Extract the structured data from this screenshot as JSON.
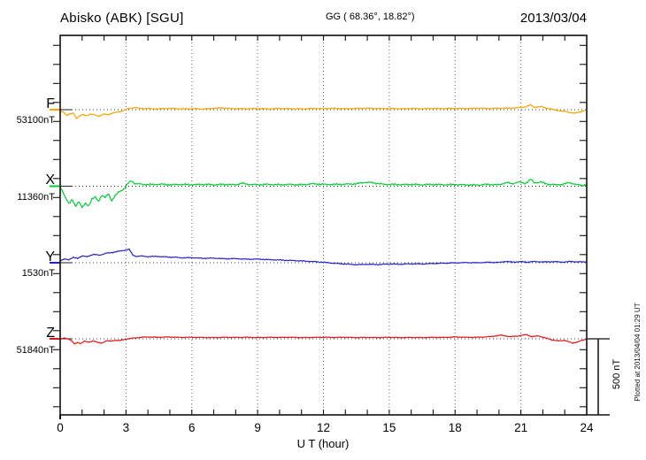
{
  "header": {
    "station": "Abisko (ABK)  [SGU]",
    "coords": "GG ( 68.36°,  18.82°)",
    "date": "2013/03/04"
  },
  "side": {
    "plotted_at": "Plotted at 2013/04/04 01:29 UT",
    "scale_label": "500 nT"
  },
  "chart_data": {
    "type": "line",
    "title": "Abisko (ABK) [SGU] magnetogram 2013/03/04",
    "xlabel": "U T (hour)",
    "xlim": [
      0,
      24
    ],
    "x_ticks": [
      0,
      3,
      6,
      9,
      12,
      15,
      18,
      21,
      24
    ],
    "x_minor_tick_every_hours": 1,
    "grid": "dotted vertical lines every 3 hours; dotted horizontal baseline per component",
    "legend_position": "left margin, one colored label per trace",
    "scale_bar": {
      "label": "500 nT",
      "nT": 500
    },
    "units": "points_dnT are offsets in nT from each component baseline_nT, sampled vs UT hour",
    "series": [
      {
        "name": "F",
        "baseline_label": "53100nT",
        "baseline_nT": 53100,
        "color": "#f5a400",
        "noise_nT": 4,
        "points_dnT": [
          [
            0,
            -8
          ],
          [
            0.15,
            -14
          ],
          [
            0.3,
            -40
          ],
          [
            0.45,
            -28
          ],
          [
            0.6,
            -22
          ],
          [
            0.75,
            -58
          ],
          [
            0.9,
            -40
          ],
          [
            1.05,
            -32
          ],
          [
            1.2,
            -38
          ],
          [
            1.4,
            -30
          ],
          [
            1.6,
            -35
          ],
          [
            1.8,
            -42
          ],
          [
            2,
            -30
          ],
          [
            2.2,
            -32
          ],
          [
            2.4,
            -22
          ],
          [
            2.6,
            -16
          ],
          [
            2.8,
            -10
          ],
          [
            3,
            0
          ],
          [
            3.2,
            10
          ],
          [
            3.4,
            14
          ],
          [
            3.6,
            9
          ],
          [
            4,
            7
          ],
          [
            4.5,
            5
          ],
          [
            5,
            9
          ],
          [
            5.5,
            5
          ],
          [
            6,
            7
          ],
          [
            6.5,
            4
          ],
          [
            7,
            9
          ],
          [
            7.4,
            12
          ],
          [
            7.8,
            7
          ],
          [
            8.5,
            6
          ],
          [
            9,
            8
          ],
          [
            9.5,
            5
          ],
          [
            10,
            8
          ],
          [
            10.5,
            6
          ],
          [
            11,
            5
          ],
          [
            11.5,
            8
          ],
          [
            12,
            7
          ],
          [
            12.5,
            9
          ],
          [
            13,
            6
          ],
          [
            13.5,
            8
          ],
          [
            14,
            10
          ],
          [
            14.5,
            7
          ],
          [
            15,
            8
          ],
          [
            15.5,
            6
          ],
          [
            16,
            8
          ],
          [
            16.5,
            6
          ],
          [
            17,
            8
          ],
          [
            17.5,
            7
          ],
          [
            18,
            9
          ],
          [
            18.5,
            7
          ],
          [
            19,
            10
          ],
          [
            19.5,
            8
          ],
          [
            20,
            9
          ],
          [
            20.5,
            10
          ],
          [
            20.9,
            14
          ],
          [
            21.2,
            18
          ],
          [
            21.45,
            32
          ],
          [
            21.6,
            16
          ],
          [
            21.9,
            20
          ],
          [
            22.2,
            10
          ],
          [
            22.5,
            0
          ],
          [
            22.8,
            -8
          ],
          [
            23.1,
            -14
          ],
          [
            23.45,
            -24
          ],
          [
            23.7,
            -14
          ],
          [
            23.9,
            -6
          ],
          [
            24,
            2
          ]
        ]
      },
      {
        "name": "X",
        "baseline_label": "11360nT",
        "baseline_nT": 11360,
        "color": "#00cc33",
        "noise_nT": 6,
        "points_dnT": [
          [
            0,
            -8
          ],
          [
            0.1,
            -30
          ],
          [
            0.25,
            -75
          ],
          [
            0.4,
            -115
          ],
          [
            0.55,
            -90
          ],
          [
            0.7,
            -130
          ],
          [
            0.85,
            -100
          ],
          [
            1,
            -142
          ],
          [
            1.15,
            -112
          ],
          [
            1.3,
            -128
          ],
          [
            1.45,
            -85
          ],
          [
            1.6,
            -72
          ],
          [
            1.75,
            -98
          ],
          [
            1.9,
            -60
          ],
          [
            2.05,
            -75
          ],
          [
            2.2,
            -48
          ],
          [
            2.35,
            -95
          ],
          [
            2.5,
            -65
          ],
          [
            2.65,
            -40
          ],
          [
            2.8,
            -28
          ],
          [
            2.95,
            -12
          ],
          [
            3.1,
            20
          ],
          [
            3.25,
            36
          ],
          [
            3.4,
            18
          ],
          [
            3.6,
            14
          ],
          [
            3.8,
            12
          ],
          [
            4.2,
            11
          ],
          [
            4.6,
            13
          ],
          [
            5,
            10
          ],
          [
            5.5,
            12
          ],
          [
            6,
            10
          ],
          [
            6.5,
            12
          ],
          [
            7,
            10
          ],
          [
            7.5,
            12
          ],
          [
            8,
            10
          ],
          [
            8.3,
            20
          ],
          [
            8.5,
            13
          ],
          [
            9,
            10
          ],
          [
            9.5,
            12
          ],
          [
            10,
            10
          ],
          [
            10.5,
            12
          ],
          [
            11,
            10
          ],
          [
            11.5,
            16
          ],
          [
            12,
            12
          ],
          [
            12.5,
            12
          ],
          [
            13,
            13
          ],
          [
            13.5,
            16
          ],
          [
            13.9,
            26
          ],
          [
            14.3,
            22
          ],
          [
            14.7,
            13
          ],
          [
            15,
            12
          ],
          [
            15.5,
            11
          ],
          [
            16,
            12
          ],
          [
            16.5,
            10
          ],
          [
            17,
            12
          ],
          [
            17.5,
            10
          ],
          [
            18,
            11
          ],
          [
            18.5,
            9
          ],
          [
            19,
            8
          ],
          [
            19.5,
            12
          ],
          [
            20,
            10
          ],
          [
            20.35,
            24
          ],
          [
            20.6,
            16
          ],
          [
            20.9,
            28
          ],
          [
            21.2,
            18
          ],
          [
            21.45,
            46
          ],
          [
            21.6,
            22
          ],
          [
            21.9,
            28
          ],
          [
            22.2,
            14
          ],
          [
            22.5,
            10
          ],
          [
            22.9,
            12
          ],
          [
            23.2,
            24
          ],
          [
            23.5,
            12
          ],
          [
            23.75,
            6
          ],
          [
            24,
            10
          ]
        ]
      },
      {
        "name": "Y",
        "baseline_label": "1530nT",
        "baseline_nT": 1530,
        "color": "#2222cc",
        "noise_nT": 3.5,
        "points_dnT": [
          [
            0,
            10
          ],
          [
            0.2,
            26
          ],
          [
            0.4,
            20
          ],
          [
            0.6,
            34
          ],
          [
            0.8,
            30
          ],
          [
            1,
            44
          ],
          [
            1.2,
            40
          ],
          [
            1.5,
            54
          ],
          [
            1.8,
            50
          ],
          [
            2.1,
            62
          ],
          [
            2.4,
            68
          ],
          [
            2.7,
            76
          ],
          [
            3,
            84
          ],
          [
            3.15,
            88
          ],
          [
            3.3,
            52
          ],
          [
            3.45,
            42
          ],
          [
            3.7,
            44
          ],
          [
            4,
            40
          ],
          [
            4.4,
            42
          ],
          [
            4.8,
            38
          ],
          [
            5.2,
            36
          ],
          [
            5.6,
            32
          ],
          [
            6,
            33
          ],
          [
            6.5,
            29
          ],
          [
            7,
            30
          ],
          [
            7.5,
            26
          ],
          [
            8,
            27
          ],
          [
            8.5,
            23
          ],
          [
            9,
            24
          ],
          [
            9.5,
            20
          ],
          [
            10,
            18
          ],
          [
            10.5,
            15
          ],
          [
            11,
            12
          ],
          [
            11.5,
            8
          ],
          [
            12,
            3
          ],
          [
            12.5,
            -4
          ],
          [
            13,
            -8
          ],
          [
            13.5,
            -13
          ],
          [
            14,
            -10
          ],
          [
            14.5,
            -12
          ],
          [
            15,
            -8
          ],
          [
            15.5,
            -10
          ],
          [
            16,
            -7
          ],
          [
            16.5,
            -8
          ],
          [
            17,
            -5
          ],
          [
            17.5,
            -3
          ],
          [
            18,
            -1
          ],
          [
            18.5,
            1
          ],
          [
            19,
            0
          ],
          [
            19.5,
            3
          ],
          [
            20,
            2
          ],
          [
            20.3,
            9
          ],
          [
            20.6,
            4
          ],
          [
            21,
            7
          ],
          [
            21.3,
            4
          ],
          [
            21.6,
            8
          ],
          [
            22,
            5
          ],
          [
            22.5,
            7
          ],
          [
            23,
            4
          ],
          [
            23.3,
            9
          ],
          [
            23.6,
            5
          ],
          [
            24,
            7
          ]
        ]
      },
      {
        "name": "Z",
        "baseline_label": "51840nT",
        "baseline_nT": 51840,
        "color": "#e01515",
        "noise_nT": 3,
        "points_dnT": [
          [
            0,
            -2
          ],
          [
            0.2,
            5
          ],
          [
            0.35,
            1
          ],
          [
            0.5,
            -10
          ],
          [
            0.65,
            -34
          ],
          [
            0.8,
            -24
          ],
          [
            0.95,
            -30
          ],
          [
            1.1,
            -16
          ],
          [
            1.3,
            -22
          ],
          [
            1.5,
            -13
          ],
          [
            1.7,
            -24
          ],
          [
            1.9,
            -28
          ],
          [
            2.1,
            -13
          ],
          [
            2.3,
            -16
          ],
          [
            2.5,
            -9
          ],
          [
            2.7,
            -12
          ],
          [
            2.9,
            -5
          ],
          [
            3.1,
            0
          ],
          [
            3.4,
            6
          ],
          [
            3.7,
            10
          ],
          [
            4,
            12
          ],
          [
            4.5,
            10
          ],
          [
            5,
            12
          ],
          [
            5.5,
            9
          ],
          [
            6,
            10
          ],
          [
            6.5,
            9
          ],
          [
            7,
            8
          ],
          [
            7.5,
            10
          ],
          [
            8,
            9
          ],
          [
            8.5,
            10
          ],
          [
            9,
            8
          ],
          [
            9.5,
            10
          ],
          [
            10,
            9
          ],
          [
            10.5,
            10
          ],
          [
            11,
            8
          ],
          [
            11.5,
            9
          ],
          [
            12,
            10
          ],
          [
            12.5,
            9
          ],
          [
            13,
            10
          ],
          [
            13.5,
            8
          ],
          [
            14,
            9
          ],
          [
            14.5,
            8
          ],
          [
            15,
            10
          ],
          [
            15.5,
            8
          ],
          [
            16,
            9
          ],
          [
            16.5,
            8
          ],
          [
            17,
            10
          ],
          [
            17.5,
            9
          ],
          [
            18,
            12
          ],
          [
            18.5,
            10
          ],
          [
            19,
            10
          ],
          [
            19.6,
            14
          ],
          [
            20.1,
            24
          ],
          [
            20.5,
            14
          ],
          [
            20.9,
            19
          ],
          [
            21.25,
            28
          ],
          [
            21.5,
            14
          ],
          [
            21.8,
            19
          ],
          [
            22.1,
            6
          ],
          [
            22.4,
            -6
          ],
          [
            22.7,
            -14
          ],
          [
            23,
            -10
          ],
          [
            23.35,
            -29
          ],
          [
            23.6,
            -19
          ],
          [
            23.85,
            -8
          ],
          [
            24,
            -3
          ]
        ]
      }
    ],
    "colors": {
      "frame": "#111111",
      "grid": "#666666",
      "baseline": "#333333",
      "scalebar": "#333333"
    }
  }
}
